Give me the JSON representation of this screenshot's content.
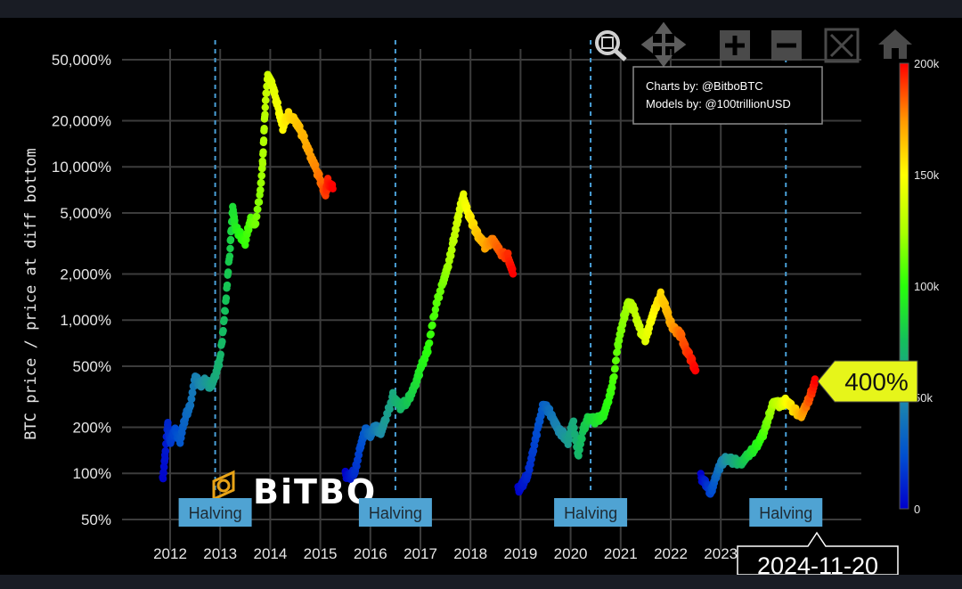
{
  "credits": {
    "line1": "Charts by: @BitboBTC",
    "line2": "Models by: @100trillionUSD"
  },
  "logo_text": "BiTBO",
  "toolbar": [
    "zoom-icon",
    "pan-icon",
    "zoom-in-icon",
    "zoom-out-icon",
    "autoscale-icon",
    "home-icon"
  ],
  "callout": {
    "label": "400%",
    "color": "#e6f51a"
  },
  "hover_date": "2024-11-20",
  "colorbar": {
    "ticks": [
      "200k",
      "150k",
      "100k",
      "50k",
      "0"
    ],
    "values": [
      200000,
      150000,
      100000,
      50000,
      0
    ]
  },
  "chart_data": {
    "type": "scatter",
    "title": "",
    "xlabel": "",
    "ylabel": "BTC price / price at diff bottom",
    "yscale": "log",
    "ylim": [
      45,
      60000
    ],
    "xlim": [
      2011.6,
      2025.7
    ],
    "x_ticks": [
      "2012",
      "2013",
      "2014",
      "2015",
      "2016",
      "2017",
      "2018",
      "2019",
      "2020",
      "2021",
      "2022",
      "2023"
    ],
    "y_ticks": [
      {
        "label": "50,000%",
        "value": 50000
      },
      {
        "label": "20,000%",
        "value": 20000
      },
      {
        "label": "10,000%",
        "value": 10000
      },
      {
        "label": "5,000%",
        "value": 5000
      },
      {
        "label": "2,000%",
        "value": 2000
      },
      {
        "label": "1,000%",
        "value": 1000
      },
      {
        "label": "500%",
        "value": 500
      },
      {
        "label": "200%",
        "value": 200
      },
      {
        "label": "100%",
        "value": 100
      },
      {
        "label": "50%",
        "value": 50
      }
    ],
    "grid": true,
    "halvings": [
      {
        "label": "Halving",
        "x": 2012.9
      },
      {
        "label": "Halving",
        "x": 2016.5
      },
      {
        "label": "Halving",
        "x": 2020.4
      },
      {
        "label": "Halving",
        "x": 2024.3
      }
    ],
    "colorscale": "jet",
    "cycles": [
      {
        "name": "",
        "points": [
          [
            2011.85,
            90
          ],
          [
            2011.9,
            130
          ],
          [
            2011.95,
            210
          ],
          [
            2012.0,
            160
          ],
          [
            2012.1,
            190
          ],
          [
            2012.2,
            165
          ],
          [
            2012.3,
            230
          ],
          [
            2012.4,
            280
          ],
          [
            2012.5,
            420
          ],
          [
            2012.6,
            380
          ],
          [
            2012.7,
            400
          ],
          [
            2012.8,
            370
          ],
          [
            2012.9,
            430
          ],
          [
            2013.0,
            560
          ],
          [
            2013.1,
            1200
          ],
          [
            2013.2,
            3000
          ],
          [
            2013.25,
            5500
          ],
          [
            2013.3,
            4000
          ],
          [
            2013.4,
            3600
          ],
          [
            2013.5,
            3200
          ],
          [
            2013.6,
            4500
          ],
          [
            2013.7,
            4200
          ],
          [
            2013.8,
            6800
          ],
          [
            2013.85,
            11000
          ],
          [
            2013.9,
            25000
          ],
          [
            2013.95,
            40000
          ],
          [
            2014.05,
            33000
          ],
          [
            2014.15,
            25000
          ],
          [
            2014.25,
            18000
          ],
          [
            2014.35,
            22000
          ],
          [
            2014.5,
            20000
          ],
          [
            2014.65,
            16000
          ],
          [
            2014.8,
            12000
          ],
          [
            2014.95,
            9000
          ],
          [
            2015.05,
            7500
          ],
          [
            2015.1,
            6500
          ],
          [
            2015.15,
            8000
          ],
          [
            2015.25,
            7200
          ]
        ]
      },
      {
        "name": "",
        "points": [
          [
            2015.5,
            98
          ],
          [
            2015.6,
            95
          ],
          [
            2015.7,
            105
          ],
          [
            2015.8,
            150
          ],
          [
            2015.9,
            190
          ],
          [
            2016.0,
            180
          ],
          [
            2016.1,
            200
          ],
          [
            2016.2,
            185
          ],
          [
            2016.3,
            220
          ],
          [
            2016.45,
            320
          ],
          [
            2016.6,
            270
          ],
          [
            2016.75,
            300
          ],
          [
            2016.9,
            380
          ],
          [
            2017.0,
            480
          ],
          [
            2017.15,
            650
          ],
          [
            2017.3,
            1200
          ],
          [
            2017.45,
            1800
          ],
          [
            2017.55,
            2200
          ],
          [
            2017.65,
            3200
          ],
          [
            2017.75,
            4600
          ],
          [
            2017.85,
            6500
          ],
          [
            2017.95,
            5000
          ],
          [
            2018.05,
            4200
          ],
          [
            2018.15,
            3600
          ],
          [
            2018.3,
            3000
          ],
          [
            2018.45,
            3400
          ],
          [
            2018.6,
            2700
          ],
          [
            2018.75,
            2600
          ],
          [
            2018.85,
            2000
          ]
        ]
      },
      {
        "name": "",
        "points": [
          [
            2018.95,
            78
          ],
          [
            2019.05,
            85
          ],
          [
            2019.15,
            100
          ],
          [
            2019.25,
            140
          ],
          [
            2019.35,
            200
          ],
          [
            2019.45,
            280
          ],
          [
            2019.55,
            260
          ],
          [
            2019.65,
            230
          ],
          [
            2019.75,
            190
          ],
          [
            2019.85,
            180
          ],
          [
            2019.95,
            160
          ],
          [
            2020.05,
            220
          ],
          [
            2020.15,
            130
          ],
          [
            2020.25,
            190
          ],
          [
            2020.35,
            230
          ],
          [
            2020.5,
            220
          ],
          [
            2020.65,
            240
          ],
          [
            2020.75,
            290
          ],
          [
            2020.85,
            400
          ],
          [
            2020.95,
            700
          ],
          [
            2021.05,
            1000
          ],
          [
            2021.15,
            1300
          ],
          [
            2021.25,
            1200
          ],
          [
            2021.4,
            850
          ],
          [
            2021.5,
            750
          ],
          [
            2021.6,
            1000
          ],
          [
            2021.7,
            1200
          ],
          [
            2021.8,
            1450
          ],
          [
            2021.9,
            1200
          ],
          [
            2022.0,
            950
          ],
          [
            2022.1,
            850
          ],
          [
            2022.2,
            800
          ],
          [
            2022.3,
            650
          ],
          [
            2022.4,
            560
          ],
          [
            2022.5,
            470
          ]
        ]
      },
      {
        "name": "",
        "points": [
          [
            2022.6,
            95
          ],
          [
            2022.7,
            85
          ],
          [
            2022.8,
            75
          ],
          [
            2022.9,
            95
          ],
          [
            2023.0,
            115
          ],
          [
            2023.1,
            125
          ],
          [
            2023.25,
            120
          ],
          [
            2023.4,
            118
          ],
          [
            2023.55,
            130
          ],
          [
            2023.7,
            150
          ],
          [
            2023.85,
            180
          ],
          [
            2023.95,
            230
          ],
          [
            2024.05,
            290
          ],
          [
            2024.2,
            280
          ],
          [
            2024.3,
            300
          ],
          [
            2024.45,
            260
          ],
          [
            2024.6,
            240
          ],
          [
            2024.7,
            270
          ],
          [
            2024.8,
            330
          ],
          [
            2024.89,
            400
          ]
        ]
      }
    ]
  }
}
